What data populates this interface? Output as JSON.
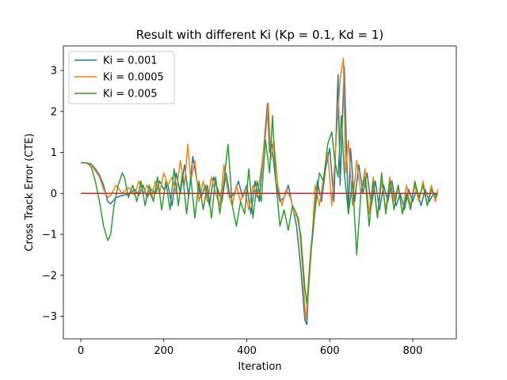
{
  "chart_data": {
    "type": "line",
    "title": "Result with different Ki (Kp = 0.1, Kd = 1)",
    "xlabel": "Iteration",
    "ylabel": "Cross Track Error (CTE)",
    "xlim": [
      -42,
      905
    ],
    "ylim": [
      -3.55,
      3.6
    ],
    "xticks": [
      0,
      200,
      400,
      600,
      800
    ],
    "yticks": [
      -3,
      -2,
      -1,
      0,
      1,
      2,
      3
    ],
    "grid": false,
    "legend": "top-left",
    "reference_line": {
      "y": 0,
      "x": [
        0,
        860
      ],
      "color": "#d62728"
    },
    "series": [
      {
        "name": "Ki = 0.001",
        "color": "#1f77b4",
        "points": [
          [
            0,
            0.75
          ],
          [
            15,
            0.74
          ],
          [
            25,
            0.72
          ],
          [
            35,
            0.6
          ],
          [
            45,
            0.45
          ],
          [
            55,
            0.2
          ],
          [
            65,
            -0.2
          ],
          [
            72,
            -0.25
          ],
          [
            85,
            -0.1
          ],
          [
            100,
            -0.05
          ],
          [
            115,
            -0.02
          ],
          [
            130,
            0.1
          ],
          [
            140,
            -0.05
          ],
          [
            150,
            0.2
          ],
          [
            160,
            -0.1
          ],
          [
            170,
            0.1
          ],
          [
            180,
            0.0
          ],
          [
            190,
            0.3
          ],
          [
            200,
            0.1
          ],
          [
            210,
            0.2
          ],
          [
            220,
            -0.3
          ],
          [
            230,
            0.5
          ],
          [
            240,
            0.0
          ],
          [
            250,
            0.7
          ],
          [
            260,
            -0.1
          ],
          [
            270,
            0.9
          ],
          [
            280,
            0.3
          ],
          [
            290,
            -0.1
          ],
          [
            300,
            0.2
          ],
          [
            310,
            -0.3
          ],
          [
            320,
            0.4
          ],
          [
            330,
            0.1
          ],
          [
            340,
            -0.2
          ],
          [
            350,
            0.5
          ],
          [
            360,
            -0.1
          ],
          [
            370,
            0.0
          ],
          [
            380,
            0.3
          ],
          [
            390,
            -0.1
          ],
          [
            400,
            0.2
          ],
          [
            410,
            -0.5
          ],
          [
            420,
            0.3
          ],
          [
            430,
            -0.2
          ],
          [
            440,
            1.0
          ],
          [
            450,
            2.2
          ],
          [
            455,
            1.0
          ],
          [
            460,
            1.2
          ],
          [
            470,
            0.3
          ],
          [
            480,
            -0.2
          ],
          [
            490,
            -0.1
          ],
          [
            500,
            0.2
          ],
          [
            510,
            -0.3
          ],
          [
            520,
            -0.8
          ],
          [
            530,
            -1.8
          ],
          [
            540,
            -3.1
          ],
          [
            545,
            -3.2
          ],
          [
            550,
            -2.0
          ],
          [
            560,
            -0.9
          ],
          [
            570,
            0.3
          ],
          [
            580,
            -0.2
          ],
          [
            590,
            0.6
          ],
          [
            600,
            1.1
          ],
          [
            610,
            -0.2
          ],
          [
            620,
            2.9
          ],
          [
            625,
            0.2
          ],
          [
            635,
            3.1
          ],
          [
            640,
            1.2
          ],
          [
            645,
            -0.5
          ],
          [
            650,
            1.1
          ],
          [
            660,
            -0.2
          ],
          [
            670,
            0.7
          ],
          [
            680,
            0.0
          ],
          [
            690,
            0.5
          ],
          [
            700,
            -0.3
          ],
          [
            710,
            0.3
          ],
          [
            720,
            -0.4
          ],
          [
            730,
            0.2
          ],
          [
            740,
            -0.2
          ],
          [
            750,
            0.3
          ],
          [
            760,
            -0.3
          ],
          [
            770,
            0.0
          ],
          [
            780,
            -0.4
          ],
          [
            790,
            0.1
          ],
          [
            800,
            -0.2
          ],
          [
            810,
            0.1
          ],
          [
            820,
            -0.3
          ],
          [
            830,
            0.1
          ],
          [
            840,
            -0.2
          ],
          [
            850,
            0.0
          ],
          [
            860,
            -0.05
          ]
        ]
      },
      {
        "name": "Ki = 0.0005",
        "color": "#ff7f0e",
        "points": [
          [
            0,
            0.75
          ],
          [
            15,
            0.74
          ],
          [
            25,
            0.7
          ],
          [
            35,
            0.55
          ],
          [
            45,
            0.4
          ],
          [
            55,
            0.1
          ],
          [
            65,
            -0.1
          ],
          [
            72,
            -0.05
          ],
          [
            85,
            0.2
          ],
          [
            100,
            0.0
          ],
          [
            115,
            0.15
          ],
          [
            130,
            -0.05
          ],
          [
            140,
            0.3
          ],
          [
            150,
            0.0
          ],
          [
            160,
            0.2
          ],
          [
            170,
            -0.1
          ],
          [
            180,
            0.3
          ],
          [
            190,
            0.0
          ],
          [
            200,
            0.5
          ],
          [
            210,
            0.2
          ],
          [
            220,
            0.4
          ],
          [
            230,
            0.0
          ],
          [
            240,
            0.8
          ],
          [
            250,
            0.2
          ],
          [
            258,
            1.2
          ],
          [
            265,
            0.3
          ],
          [
            275,
            0.8
          ],
          [
            285,
            -0.2
          ],
          [
            295,
            0.3
          ],
          [
            305,
            -0.2
          ],
          [
            315,
            0.4
          ],
          [
            325,
            0.0
          ],
          [
            335,
            -0.3
          ],
          [
            345,
            0.7
          ],
          [
            355,
            0.0
          ],
          [
            365,
            -0.3
          ],
          [
            375,
            0.2
          ],
          [
            385,
            -0.2
          ],
          [
            395,
            0.1
          ],
          [
            405,
            -0.4
          ],
          [
            415,
            0.2
          ],
          [
            425,
            -0.1
          ],
          [
            435,
            0.6
          ],
          [
            445,
            1.4
          ],
          [
            452,
            2.2
          ],
          [
            458,
            0.8
          ],
          [
            465,
            1.3
          ],
          [
            475,
            0.2
          ],
          [
            485,
            -0.3
          ],
          [
            495,
            0.1
          ],
          [
            505,
            -0.1
          ],
          [
            515,
            -0.5
          ],
          [
            525,
            -0.6
          ],
          [
            535,
            -1.9
          ],
          [
            542,
            -3.1
          ],
          [
            548,
            -2.5
          ],
          [
            555,
            -1.5
          ],
          [
            565,
            0.2
          ],
          [
            575,
            -0.3
          ],
          [
            585,
            0.4
          ],
          [
            595,
            1.0
          ],
          [
            605,
            -0.3
          ],
          [
            615,
            1.2
          ],
          [
            625,
            2.8
          ],
          [
            633,
            3.3
          ],
          [
            638,
            0.5
          ],
          [
            645,
            1.3
          ],
          [
            655,
            -0.3
          ],
          [
            665,
            0.8
          ],
          [
            675,
            0.0
          ],
          [
            685,
            0.6
          ],
          [
            695,
            -0.5
          ],
          [
            705,
            0.4
          ],
          [
            715,
            -0.6
          ],
          [
            725,
            0.3
          ],
          [
            735,
            -0.4
          ],
          [
            745,
            0.4
          ],
          [
            755,
            -0.2
          ],
          [
            765,
            0.2
          ],
          [
            775,
            -0.5
          ],
          [
            785,
            0.2
          ],
          [
            795,
            -0.3
          ],
          [
            805,
            0.2
          ],
          [
            815,
            -0.2
          ],
          [
            825,
            0.3
          ],
          [
            835,
            -0.3
          ],
          [
            845,
            0.2
          ],
          [
            855,
            -0.2
          ],
          [
            860,
            0.1
          ]
        ]
      },
      {
        "name": "Ki = 0.005",
        "color": "#2ca02c",
        "points": [
          [
            0,
            0.75
          ],
          [
            15,
            0.74
          ],
          [
            25,
            0.65
          ],
          [
            35,
            0.3
          ],
          [
            45,
            -0.2
          ],
          [
            55,
            -0.8
          ],
          [
            65,
            -1.15
          ],
          [
            72,
            -1.0
          ],
          [
            80,
            -0.3
          ],
          [
            90,
            0.2
          ],
          [
            100,
            0.5
          ],
          [
            105,
            0.4
          ],
          [
            115,
            -0.1
          ],
          [
            125,
            0.2
          ],
          [
            135,
            -0.2
          ],
          [
            145,
            0.3
          ],
          [
            155,
            -0.3
          ],
          [
            165,
            0.2
          ],
          [
            175,
            -0.2
          ],
          [
            185,
            0.4
          ],
          [
            195,
            -0.4
          ],
          [
            205,
            0.3
          ],
          [
            215,
            -0.4
          ],
          [
            225,
            0.6
          ],
          [
            235,
            -0.3
          ],
          [
            245,
            0.5
          ],
          [
            255,
            -0.5
          ],
          [
            265,
            0.4
          ],
          [
            275,
            -0.6
          ],
          [
            285,
            0.3
          ],
          [
            295,
            -0.4
          ],
          [
            305,
            0.2
          ],
          [
            315,
            -0.6
          ],
          [
            325,
            0.4
          ],
          [
            335,
            -0.5
          ],
          [
            345,
            0.3
          ],
          [
            355,
            1.2
          ],
          [
            365,
            -0.3
          ],
          [
            375,
            -0.8
          ],
          [
            385,
            -0.2
          ],
          [
            395,
            -0.5
          ],
          [
            405,
            0.6
          ],
          [
            415,
            -0.6
          ],
          [
            425,
            0.3
          ],
          [
            435,
            -0.2
          ],
          [
            445,
            1.3
          ],
          [
            455,
            0.5
          ],
          [
            462,
            1.9
          ],
          [
            470,
            0.3
          ],
          [
            480,
            -0.8
          ],
          [
            490,
            -0.4
          ],
          [
            500,
            -0.9
          ],
          [
            510,
            -0.3
          ],
          [
            520,
            -0.5
          ],
          [
            530,
            -1.0
          ],
          [
            540,
            -2.3
          ],
          [
            545,
            -2.7
          ],
          [
            550,
            -2.0
          ],
          [
            555,
            -1.3
          ],
          [
            565,
            -0.4
          ],
          [
            575,
            0.5
          ],
          [
            585,
            0.3
          ],
          [
            595,
            1.2
          ],
          [
            605,
            1.5
          ],
          [
            612,
            0.8
          ],
          [
            620,
            0.4
          ],
          [
            628,
            1.9
          ],
          [
            635,
            0.5
          ],
          [
            645,
            -0.5
          ],
          [
            655,
            0.3
          ],
          [
            665,
            -1.5
          ],
          [
            675,
            0.0
          ],
          [
            685,
            0.4
          ],
          [
            695,
            -0.8
          ],
          [
            705,
            0.3
          ],
          [
            715,
            -0.6
          ],
          [
            725,
            0.5
          ],
          [
            735,
            -0.5
          ],
          [
            745,
            0.3
          ],
          [
            755,
            -0.4
          ],
          [
            765,
            0.2
          ],
          [
            775,
            -0.5
          ],
          [
            785,
            0.0
          ],
          [
            795,
            -0.4
          ],
          [
            805,
            0.3
          ],
          [
            815,
            -0.1
          ],
          [
            825,
            0.2
          ],
          [
            835,
            -0.3
          ],
          [
            845,
            0.1
          ],
          [
            855,
            -0.1
          ],
          [
            860,
            0.0
          ]
        ]
      }
    ]
  }
}
